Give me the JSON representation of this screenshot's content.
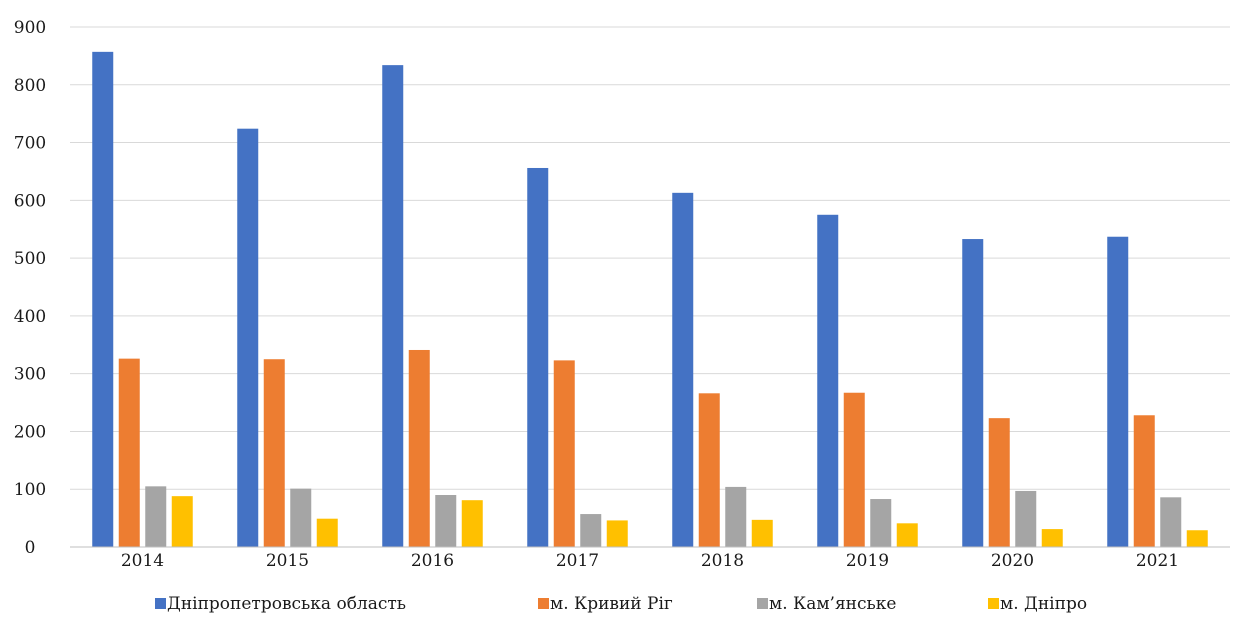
{
  "chart_data": {
    "type": "bar",
    "title": "",
    "xlabel": "",
    "ylabel": "",
    "ylim": [
      0,
      900
    ],
    "yticks": [
      0,
      100,
      200,
      300,
      400,
      500,
      600,
      700,
      800,
      900
    ],
    "grid": true,
    "legend_position": "bottom",
    "categories": [
      "2014",
      "2015",
      "2016",
      "2017",
      "2018",
      "2019",
      "2020",
      "2021"
    ],
    "series": [
      {
        "name": "Дніпропетровська область",
        "color": "#4472C4",
        "values": [
          857,
          724,
          834,
          656,
          613,
          575,
          533,
          537
        ]
      },
      {
        "name": "м. Кривий Ріг",
        "color": "#ED7D31",
        "values": [
          326,
          325,
          341,
          323,
          266,
          267,
          223,
          228
        ]
      },
      {
        "name": "м. Кам’янське",
        "color": "#A5A5A5",
        "values": [
          105,
          101,
          90,
          57,
          104,
          83,
          97,
          86
        ]
      },
      {
        "name": "м. Дніпро",
        "color": "#FFC000",
        "values": [
          88,
          49,
          81,
          46,
          47,
          41,
          31,
          29
        ]
      }
    ]
  }
}
